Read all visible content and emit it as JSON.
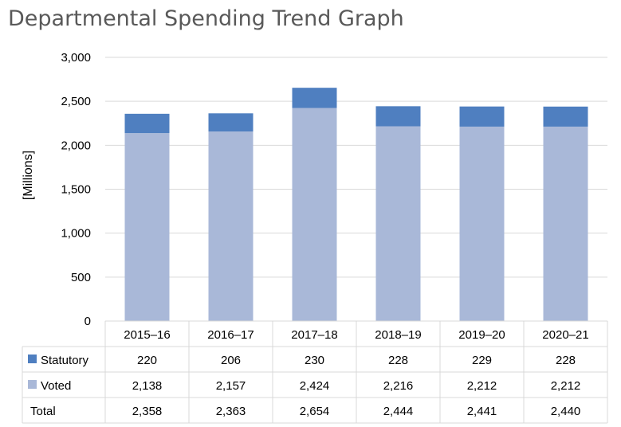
{
  "chart_data": {
    "type": "bar",
    "stacked": true,
    "title": "Departmental Spending Trend Graph",
    "ylabel": "[Millions]",
    "xlabel": "",
    "ylim": [
      0,
      3000
    ],
    "yticks": [
      0,
      500,
      1000,
      1500,
      2000,
      2500,
      3000
    ],
    "ytick_labels": [
      "0",
      "500",
      "1,000",
      "1,500",
      "2,000",
      "2,500",
      "3,000"
    ],
    "categories": [
      "2015–16",
      "2016–17",
      "2017–18",
      "2018–19",
      "2019–20",
      "2020–21"
    ],
    "series": [
      {
        "name": "Voted",
        "color": "#a9b8d8",
        "values": [
          2138,
          2157,
          2424,
          2216,
          2212,
          2212
        ],
        "labels": [
          "2,138",
          "2,157",
          "2,424",
          "2,216",
          "2,212",
          "2,212"
        ]
      },
      {
        "name": "Statutory",
        "color": "#4f7fc0",
        "values": [
          220,
          206,
          230,
          228,
          229,
          228
        ],
        "labels": [
          "220",
          "206",
          "230",
          "228",
          "229",
          "228"
        ]
      }
    ],
    "table_rows": [
      {
        "label": "Statutory",
        "legend_color": "#4f7fc0",
        "values": [
          "220",
          "206",
          "230",
          "228",
          "229",
          "228"
        ]
      },
      {
        "label": "Voted",
        "legend_color": "#a9b8d8",
        "values": [
          "2,138",
          "2,157",
          "2,424",
          "2,216",
          "2,212",
          "2,212"
        ]
      },
      {
        "label": "Total",
        "legend_color": "",
        "values": [
          "2,358",
          "2,363",
          "2,654",
          "2,444",
          "2,441",
          "2,440"
        ]
      }
    ],
    "grid": true,
    "legend": "data-table"
  }
}
